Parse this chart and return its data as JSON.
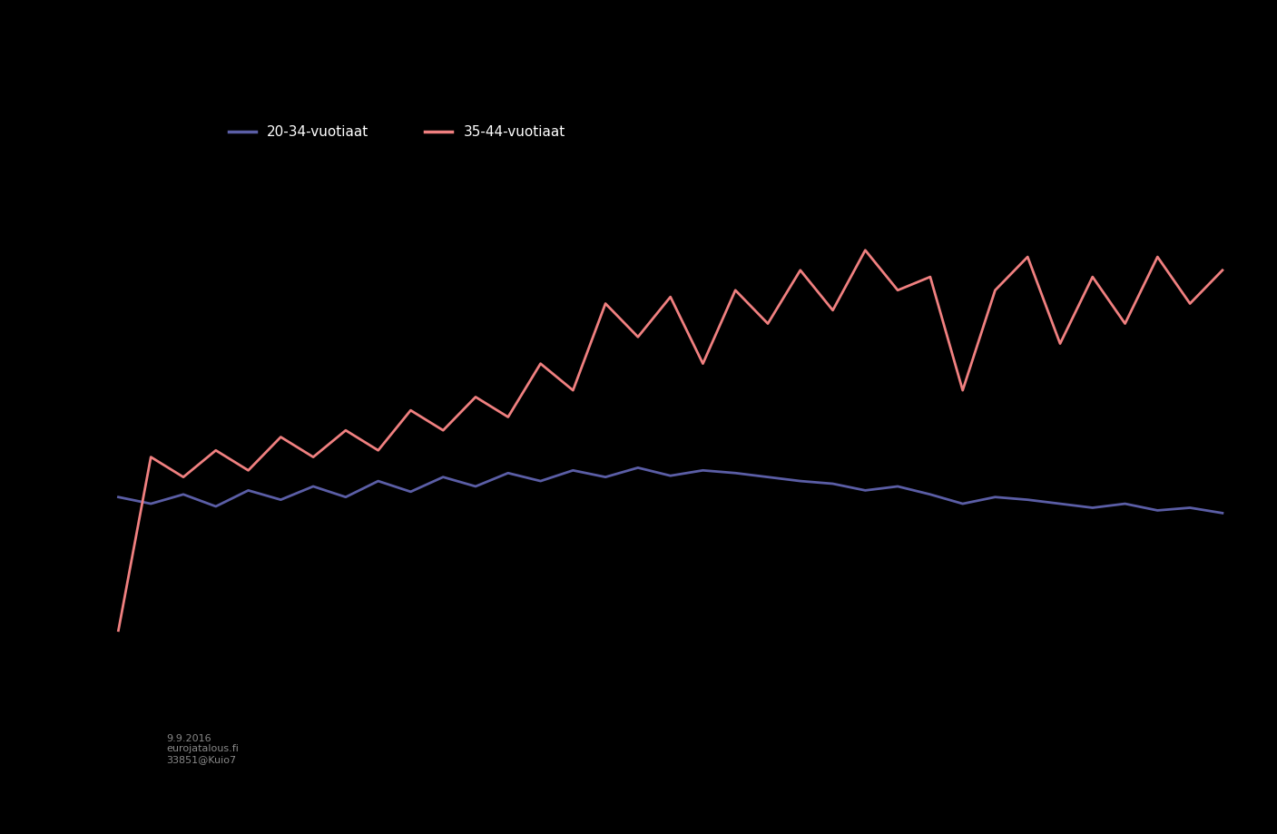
{
  "background_color": "#000000",
  "line1_color": "#5B5EA6",
  "line2_color": "#F08080",
  "title_color": "#000000",
  "title_fontsize": 18,
  "attribution": "9.9.2016\neurojatalous.fi\n33851@Kuio7",
  "legend_label1": "20-34-vuotiaat",
  "legend_label2": "35-44-vuotiaat",
  "x_values": [
    0,
    1,
    2,
    3,
    4,
    5,
    6,
    7,
    8,
    9,
    10,
    11,
    12,
    13,
    14,
    15,
    16,
    17,
    18,
    19,
    20,
    21,
    22,
    23,
    24,
    25,
    26,
    27,
    28,
    29,
    30,
    31,
    32,
    33,
    34
  ],
  "line1_y": [
    2.0,
    1.5,
    2.2,
    1.3,
    2.5,
    1.8,
    2.8,
    2.0,
    3.2,
    2.4,
    3.5,
    2.8,
    3.8,
    3.2,
    4.0,
    3.5,
    4.2,
    3.6,
    4.0,
    3.8,
    3.5,
    3.2,
    3.0,
    2.5,
    2.8,
    2.2,
    1.5,
    2.0,
    1.8,
    1.5,
    1.2,
    1.5,
    1.0,
    1.2,
    0.8
  ],
  "line2_y": [
    -8.0,
    5.0,
    3.5,
    5.5,
    4.0,
    6.5,
    5.0,
    7.0,
    5.5,
    8.5,
    7.0,
    9.5,
    8.0,
    12.0,
    10.0,
    16.5,
    14.0,
    17.0,
    12.0,
    17.5,
    15.0,
    19.0,
    16.0,
    20.5,
    17.5,
    18.5,
    10.0,
    17.5,
    20.0,
    13.5,
    18.5,
    15.0,
    20.0,
    16.5,
    19.0
  ],
  "ylim": [
    -12,
    28
  ],
  "xlim": [
    -0.5,
    34.5
  ]
}
